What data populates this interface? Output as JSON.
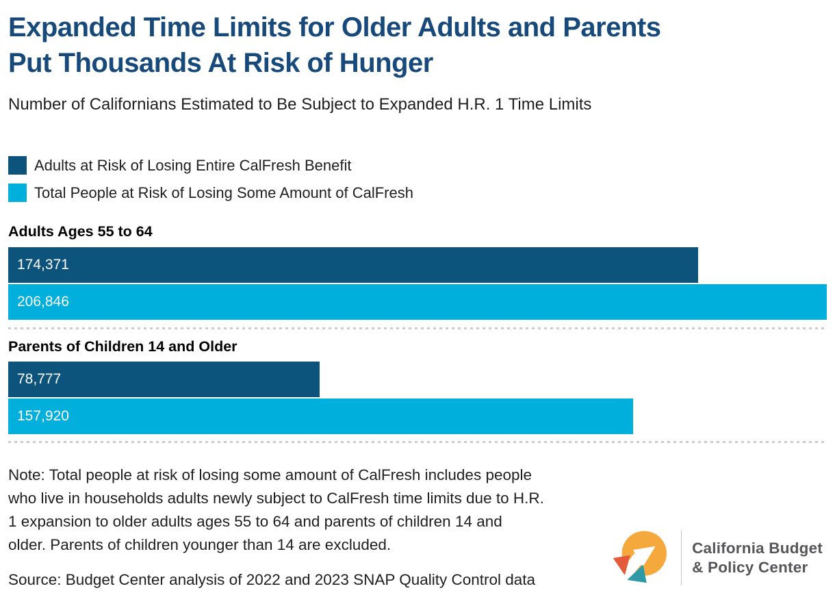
{
  "header": {
    "title_lines": [
      "Expanded Time Limits for Older Adults and Parents",
      "Put Thousands At Risk of Hunger"
    ],
    "subtitle": "Number of Californians Estimated to Be Subject to Expanded H.R. 1 Time Limits"
  },
  "legend": {
    "items": [
      {
        "label": "Adults at Risk of Losing Entire CalFresh Benefit",
        "color_key": "series_dark"
      },
      {
        "label": "Total People at Risk of Losing Some Amount of CalFresh",
        "color_key": "series_light"
      }
    ]
  },
  "chart_data": {
    "type": "bar",
    "orientation": "horizontal",
    "title": "Expanded Time Limits for Older Adults and Parents Put Thousands At Risk of Hunger",
    "subtitle": "Number of Californians Estimated to Be Subject to Expanded H.R. 1 Time Limits",
    "xmax": 206846,
    "grid": false,
    "legend_position": "top-left",
    "series_names": [
      "Adults at Risk of Losing Entire CalFresh Benefit",
      "Total People at Risk of Losing Some Amount of CalFresh"
    ],
    "groups": [
      {
        "category": "Adults Ages 55 to 64",
        "bars": [
          {
            "series": "Adults at Risk of Losing Entire CalFresh Benefit",
            "value": 174371,
            "display": "174,371",
            "color_key": "series_dark"
          },
          {
            "series": "Total People at Risk of Losing Some Amount of CalFresh",
            "value": 206846,
            "display": "206,846",
            "color_key": "series_light"
          }
        ]
      },
      {
        "category": "Parents of Children 14 and Older",
        "bars": [
          {
            "series": "Adults at Risk of Losing Entire CalFresh Benefit",
            "value": 78777,
            "display": "78,777",
            "color_key": "series_dark"
          },
          {
            "series": "Total People at Risk of Losing Some Amount of CalFresh",
            "value": 157920,
            "display": "157,920",
            "color_key": "series_light"
          }
        ]
      }
    ]
  },
  "notes": {
    "note_lines": [
      "Note: Total people at risk of losing some amount of CalFresh includes people",
      "who live in households adults newly subject to CalFresh time limits due to H.R.",
      "1 expansion to older adults ages 55 to 64 and parents of children 14 and",
      "older. Parents of children younger than 14 are excluded."
    ],
    "source": "Source: Budget Center analysis of 2022 and 2023 SNAP Quality Control data"
  },
  "logo": {
    "org_name_lines": [
      "California Budget",
      "& Policy Center"
    ]
  },
  "colors": {
    "title_blue": "#17497B",
    "series_dark": "#0D547D",
    "series_light": "#00AFDC",
    "text_dark": "#1E1E1E",
    "divider_dotted": "#C9CDD1",
    "logo_yellow": "#F5A83C",
    "logo_orange": "#E45B3B",
    "logo_teal": "#2E9AA6",
    "logo_text": "#55565A",
    "logo_divider": "#C6C6C6"
  }
}
